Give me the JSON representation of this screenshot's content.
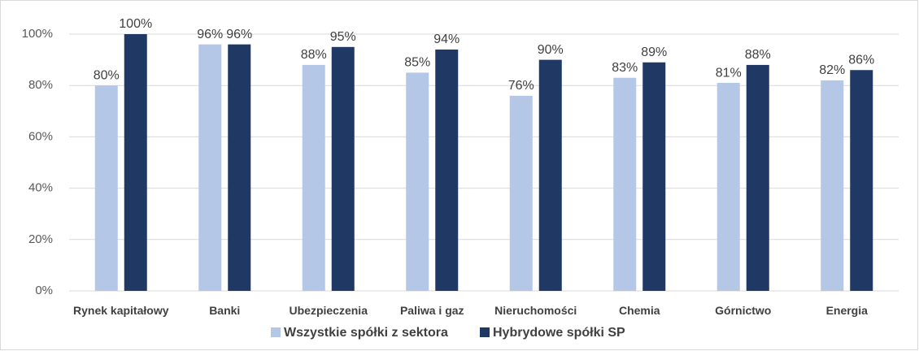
{
  "chart_data": {
    "type": "bar",
    "categories": [
      "Rynek kapitałowy",
      "Banki",
      "Ubezpieczenia",
      "Paliwa i gaz",
      "Nieruchomości",
      "Chemia",
      "Górnictwo",
      "Energia"
    ],
    "series": [
      {
        "name": "Wszystkie spółki z sektora",
        "color": "#b4c7e7",
        "values": [
          80,
          96,
          88,
          85,
          76,
          83,
          81,
          82
        ],
        "value_labels": [
          "80%",
          "96%",
          "88%",
          "85%",
          "76%",
          "83%",
          "81%",
          "82%"
        ]
      },
      {
        "name": "Hybrydowe spółki SP",
        "color": "#1f3864",
        "values": [
          100,
          96,
          95,
          94,
          90,
          89,
          88,
          86
        ],
        "value_labels": [
          "100%",
          "96%",
          "95%",
          "94%",
          "90%",
          "89%",
          "88%",
          "86%"
        ]
      }
    ],
    "ylim": [
      0,
      100
    ],
    "yticks": [
      {
        "value": 0,
        "label": "0%"
      },
      {
        "value": 20,
        "label": "20%"
      },
      {
        "value": 40,
        "label": "40%"
      },
      {
        "value": 60,
        "label": "60%"
      },
      {
        "value": 80,
        "label": "80%"
      },
      {
        "value": 100,
        "label": "100%"
      }
    ],
    "grid": true,
    "legend": "bottom"
  }
}
